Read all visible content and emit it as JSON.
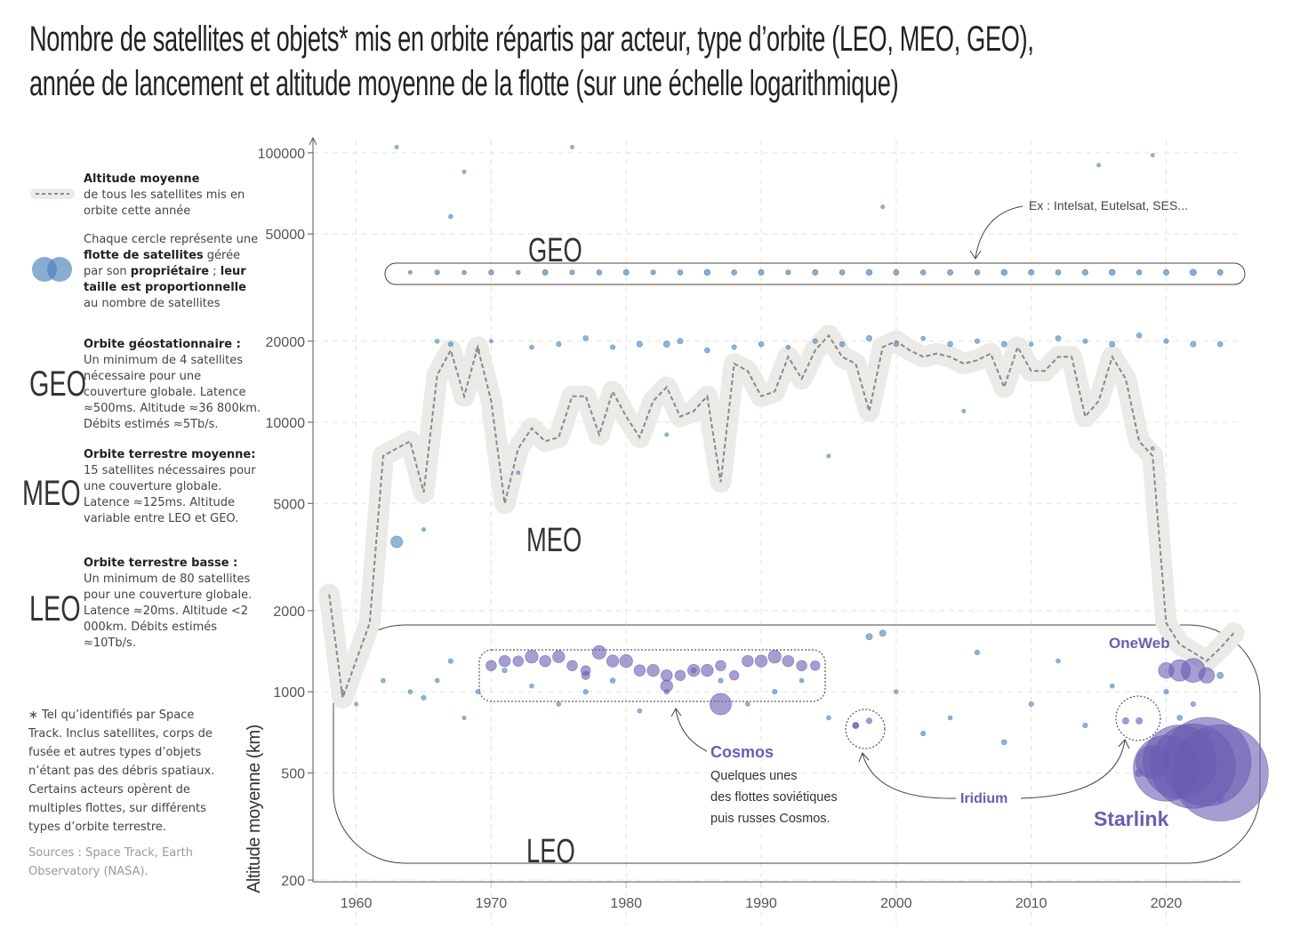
{
  "chart_data": {
    "type": "scatter",
    "title": [
      "Nombre de satellites et objets* mis en orbite répartis par acteur, type d’orbite (LEO, MEO, GEO),",
      "année de lancement et altitude moyenne de la flotte (sur une échelle logarithmique)"
    ],
    "y_label": "Altitude moyenne (km)",
    "log_y": true,
    "grid": true,
    "ylim": [
      200,
      112000
    ],
    "yticks": [
      200,
      500,
      1000,
      2000,
      5000,
      10000,
      20000,
      50000,
      100000
    ],
    "xlim": [
      1956.8,
      2025.5
    ],
    "xticks": [
      1960,
      1970,
      1980,
      1990,
      2000,
      2010,
      2020
    ],
    "mean_line": {
      "type": "line",
      "color": "#888888",
      "halo_color": "#eceae6",
      "x": [
        1958,
        1959,
        1961,
        1962,
        1963,
        1964,
        1965,
        1966,
        1967,
        1968,
        1969,
        1970,
        1971,
        1972,
        1973,
        1974,
        1975,
        1976,
        1977,
        1978,
        1979,
        1980,
        1981,
        1982,
        1983,
        1984,
        1985,
        1986,
        1987,
        1988,
        1989,
        1990,
        1991,
        1992,
        1993,
        1994,
        1995,
        1996,
        1997,
        1998,
        1999,
        2000,
        2001,
        2002,
        2003,
        2004,
        2005,
        2006,
        2007,
        2008,
        2009,
        2010,
        2011,
        2012,
        2013,
        2014,
        2015,
        2016,
        2017,
        2018,
        2019,
        2020,
        2021,
        2022,
        2023,
        2024,
        2025
      ],
      "y": [
        2300,
        950,
        1800,
        7500,
        8000,
        8500,
        5500,
        15000,
        18500,
        12500,
        19000,
        12000,
        5000,
        8000,
        9500,
        8500,
        8800,
        12500,
        12500,
        9000,
        13000,
        10500,
        8800,
        12000,
        13500,
        10500,
        11000,
        12500,
        6000,
        16500,
        15500,
        12500,
        13000,
        17500,
        14500,
        18500,
        21000,
        17500,
        16500,
        11000,
        19000,
        20000,
        18500,
        17500,
        18000,
        17500,
        16500,
        17000,
        18000,
        13500,
        19000,
        15500,
        15500,
        17500,
        17500,
        10500,
        12000,
        17500,
        14500,
        8500,
        7500,
        1800,
        1500,
        1400,
        1300,
        1450,
        1650
      ]
    },
    "series": [
      {
        "color": "#3f74ad",
        "x": [
          1964,
          1966,
          1968,
          1970,
          1972,
          1974,
          1976,
          1978,
          1980,
          1982,
          1984,
          1986,
          1988,
          1990,
          1992,
          1994,
          1996,
          1998,
          2000,
          2002,
          2004,
          2006,
          2008,
          2010,
          2012,
          2014,
          2016,
          2018,
          2020,
          2022,
          2024
        ],
        "y": [
          36000,
          36000,
          36000,
          36000,
          36000,
          36000,
          36000,
          36000,
          36000,
          36000,
          36000,
          36000,
          36000,
          36000,
          36000,
          36000,
          36000,
          36000,
          36000,
          36000,
          36000,
          36000,
          36000,
          36000,
          36000,
          36000,
          36000,
          36000,
          36000,
          36000,
          36000
        ],
        "sizes": [
          2,
          4,
          3,
          5,
          3,
          6,
          4,
          5,
          6,
          4,
          5,
          7,
          5,
          6,
          4,
          6,
          5,
          7,
          6,
          5,
          6,
          5,
          7,
          6,
          5,
          6,
          7,
          5,
          6,
          8,
          6
        ]
      },
      {
        "color": "#4a80b8",
        "x": [
          1963,
          1966,
          1967,
          1969,
          1970,
          1973,
          1975,
          1977,
          1979,
          1981,
          1983,
          1984,
          1986,
          1988,
          1990,
          1992,
          1994,
          1996,
          1998,
          2000,
          2002,
          2004,
          2006,
          2008,
          2010,
          2012,
          2014,
          2016,
          2018,
          2020,
          2022,
          2024,
          1963,
          1967,
          1968,
          1976,
          1999,
          2015,
          2019,
          1965,
          1972,
          1983,
          1995,
          2005,
          2019
        ],
        "y": [
          3600,
          20000,
          19500,
          18500,
          20000,
          19000,
          19500,
          20500,
          19000,
          19500,
          19500,
          20000,
          18500,
          19000,
          19500,
          19000,
          20000,
          19500,
          20500,
          19500,
          20500,
          19500,
          20000,
          19500,
          19500,
          20500,
          20000,
          19500,
          21000,
          20000,
          19500,
          19500,
          105000,
          58000,
          85000,
          105000,
          63000,
          90000,
          98000,
          4000,
          6500,
          9000,
          7500,
          11000,
          8000
        ],
        "sizes": [
          32,
          3,
          4,
          3,
          2,
          3,
          4,
          5,
          4,
          6,
          8,
          6,
          5,
          4,
          5,
          3,
          4,
          5,
          6,
          4,
          3,
          5,
          4,
          6,
          3,
          5,
          4,
          6,
          5,
          4,
          6,
          5,
          2,
          3,
          2,
          2,
          2,
          2,
          2,
          2,
          2,
          2,
          2,
          2,
          2
        ]
      },
      {
        "color": "#4a80b8",
        "x": [
          1959,
          1960,
          1962,
          1964,
          1965,
          1966,
          1967,
          1968,
          1969,
          1971,
          1973,
          1975,
          1977,
          1979,
          1981,
          1983,
          1985,
          1987,
          1989,
          1991,
          1993,
          1995,
          1997,
          1998,
          1999,
          2000,
          2002,
          2004,
          2006,
          2008,
          2010,
          2012,
          2014,
          2016,
          2018,
          2019,
          2020,
          2021,
          2022,
          2023,
          2024,
          2024
        ],
        "y": [
          1000,
          900,
          1100,
          1000,
          950,
          1100,
          1300,
          800,
          1000,
          1200,
          1050,
          900,
          1000,
          1100,
          850,
          1000,
          1200,
          1100,
          900,
          1000,
          1100,
          800,
          750,
          1600,
          1650,
          1000,
          700,
          800,
          1400,
          650,
          900,
          1300,
          750,
          1050,
          500,
          600,
          1000,
          800,
          900,
          700,
          1150,
          400
        ],
        "sizes": [
          2,
          2,
          3,
          3,
          4,
          3,
          4,
          2,
          3,
          4,
          3,
          3,
          4,
          5,
          3,
          4,
          5,
          4,
          3,
          4,
          3,
          3,
          6,
          8,
          8,
          3,
          4,
          3,
          4,
          5,
          4,
          3,
          4,
          3,
          12,
          6,
          4,
          5,
          4,
          5,
          8,
          10
        ]
      },
      {
        "color": "#6b5cb3",
        "x": [
          1970,
          1971,
          1972,
          1973,
          1974,
          1975,
          1976,
          1977,
          1978,
          1979,
          1980,
          1981,
          1982,
          1983,
          1984,
          1985,
          1986,
          1987,
          1988,
          1989,
          1990,
          1991,
          1992,
          1993,
          1994,
          1977,
          1983,
          1987,
          1997,
          1998,
          2017,
          2018,
          2020,
          2021,
          2022,
          2023,
          2019,
          2020,
          2021,
          2022,
          2023,
          2024
        ],
        "y": [
          1250,
          1300,
          1300,
          1350,
          1300,
          1350,
          1250,
          1200,
          1400,
          1300,
          1300,
          1200,
          1200,
          1150,
          1150,
          1200,
          1200,
          1250,
          1150,
          1300,
          1300,
          1350,
          1300,
          1250,
          1250,
          1150,
          1050,
          900,
          750,
          780,
          780,
          780,
          1200,
          1200,
          1200,
          1150,
          550,
          520,
          550,
          530,
          550,
          500
        ],
        "sizes": [
          25,
          30,
          25,
          40,
          30,
          35,
          25,
          20,
          45,
          35,
          40,
          30,
          35,
          30,
          25,
          35,
          35,
          25,
          20,
          30,
          35,
          40,
          30,
          25,
          20,
          15,
          35,
          120,
          8,
          6,
          8,
          8,
          60,
          120,
          150,
          60,
          300,
          1200,
          1500,
          2000,
          2200,
          2600
        ]
      }
    ],
    "annotations": [
      "GEO",
      "MEO",
      "LEO",
      "Ex : Intelsat, Eutelsat, SES...",
      "OneWeb",
      "Cosmos",
      "Quelques unes",
      "des flottes soviétiques",
      "puis russes Cosmos.",
      "Iridium",
      "Starlink"
    ],
    "sidebar": [
      {
        "heading": "Altitude moyenne",
        "runs": [
          {
            "text": "de tous les satellites mis en orbite cette année"
          }
        ]
      },
      {
        "runs": [
          {
            "text": "Chaque cercle représente une "
          },
          {
            "text": "flotte de satellites",
            "bold": true
          },
          {
            "text": " gérée par son "
          },
          {
            "text": "propriétaire",
            "bold": true
          },
          {
            "text": " ; "
          },
          {
            "text": "leur taille est proportionnelle",
            "bold": true
          },
          {
            "text": " au nombre de satellites"
          }
        ]
      },
      {
        "label": "GEO",
        "heading": "Orbite géostationnaire :",
        "runs": [
          {
            "text": "Un minimum de 4 satellites nécessaire pour une couverture globale. Latence ≈500ms. Altitude ≈36 800km. Débits estimés ≈5Tb/s."
          }
        ]
      },
      {
        "label": "MEO",
        "heading": "Orbite terrestre moyenne:",
        "runs": [
          {
            "text": "15 satellites nécessaires pour une couverture globale. Latence ≈125ms. Altitude variable entre LEO et GEO."
          }
        ]
      },
      {
        "label": "LEO",
        "heading": "Orbite terrestre basse :",
        "runs": [
          {
            "text": "Un minimum de 80 satellites pour une couverture globale. Latence ≈20ms. Altitude <2 000km. Débits estimés ≈10Tb/s."
          }
        ]
      }
    ],
    "footnote": "∗ Tel qu’identifiés par Space Track. Inclus satellites, corps de fusée et autres types d’objets n’étant pas des débris spatiaux. Certains acteurs opèrent de multiples flottes, sur différents types d’orbite terrestre.",
    "sources": "Sources : Space Track, Earth Observatory (NASA)."
  }
}
